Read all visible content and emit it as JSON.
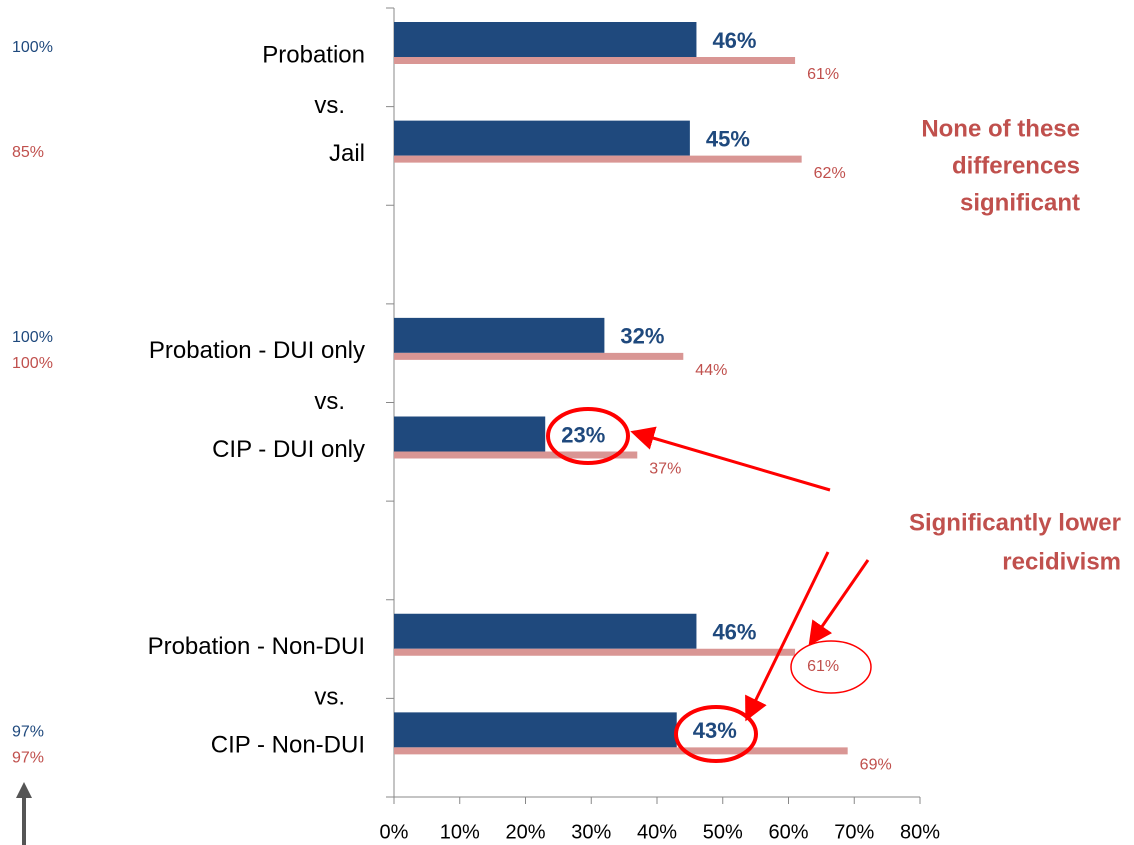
{
  "chart_data": {
    "type": "bar",
    "orientation": "horizontal",
    "categories": [
      "Probation",
      "Jail",
      null,
      "Probation - DUI only",
      "CIP - DUI only",
      null,
      "Probation - Non-DUI",
      "CIP - Non-DUI"
    ],
    "connectors": [
      "vs.",
      "vs.",
      "vs."
    ],
    "series": [
      {
        "color": "#1f497d",
        "values": [
          46,
          45,
          null,
          32,
          23,
          null,
          46,
          43
        ],
        "value_labels": [
          "46%",
          "45%",
          null,
          "32%",
          "23%",
          null,
          "46%",
          "43%"
        ],
        "side_labels": [
          "100%",
          null,
          null,
          "100%",
          null,
          null,
          null,
          "97%"
        ]
      },
      {
        "color": "#d99694",
        "label_color": "#c0504d",
        "values": [
          61,
          62,
          null,
          44,
          37,
          null,
          61,
          69
        ],
        "value_labels": [
          "61%",
          "62%",
          null,
          "44%",
          "37%",
          null,
          "61%",
          "69%"
        ],
        "side_labels": [
          null,
          "85%",
          null,
          "100%",
          null,
          null,
          null,
          "97%"
        ]
      }
    ],
    "xlim": [
      0,
      80
    ],
    "xticks": [
      {
        "value": 0,
        "label": "0%"
      },
      {
        "value": 10,
        "label": "10%"
      },
      {
        "value": 20,
        "label": "20%"
      },
      {
        "value": 30,
        "label": "30%"
      },
      {
        "value": 40,
        "label": "40%"
      },
      {
        "value": 50,
        "label": "50%"
      },
      {
        "value": 60,
        "label": "60%"
      },
      {
        "value": 70,
        "label": "70%"
      },
      {
        "value": 80,
        "label": "80%"
      }
    ],
    "annotations": [
      {
        "lines": [
          "None of these",
          "differences",
          "significant"
        ],
        "color": "#c0504d"
      },
      {
        "lines": [
          "Significantly lower",
          "recidivism"
        ],
        "color": "#c0504d"
      }
    ]
  }
}
